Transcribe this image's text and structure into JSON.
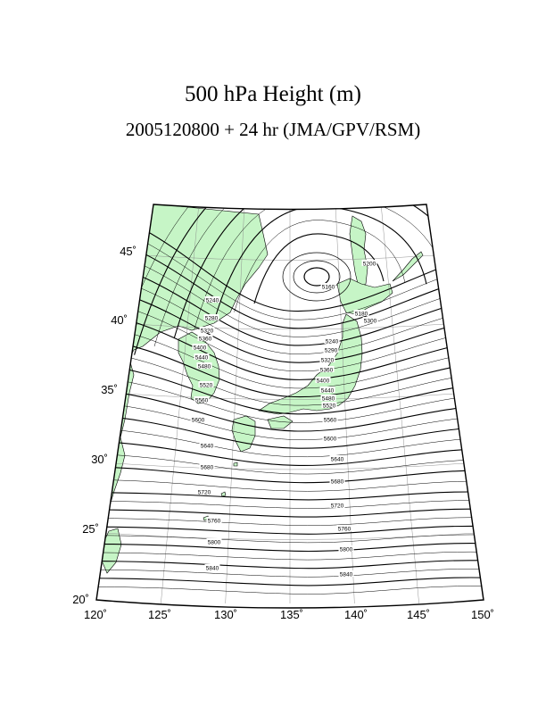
{
  "title": "500 hPa Height (m)",
  "subtitle": "2005120800 + 24 hr (JMA/GPV/RSM)",
  "map": {
    "lon_labels": [
      "120˚",
      "125˚",
      "130˚",
      "135˚",
      "140˚",
      "145˚",
      "150˚"
    ],
    "lat_labels": [
      "20˚",
      "25˚",
      "30˚",
      "35˚",
      "40˚",
      "45˚"
    ],
    "land_color": "#c6f5c6",
    "contour_labels": [
      "5160",
      "5180",
      "5200",
      "5240",
      "5280",
      "5290",
      "5300",
      "5320",
      "5360",
      "5400",
      "5440",
      "5480",
      "5520",
      "5560",
      "5600",
      "5640",
      "5680",
      "5720",
      "5760",
      "5800",
      "5840"
    ]
  },
  "chart_data": {
    "type": "contour",
    "title": "500 hPa Height (m)",
    "subtitle": "2005120800 + 24 hr (JMA/GPV/RSM)",
    "variable": "500 hPa geopotential height",
    "unit": "m",
    "x_range": [
      120,
      150
    ],
    "y_range": [
      20,
      48
    ],
    "labeled_levels": [
      5160,
      5240,
      5280,
      5320,
      5360,
      5400,
      5440,
      5480,
      5520,
      5560,
      5600,
      5640,
      5680,
      5720,
      5760,
      5800,
      5840
    ],
    "low_center": {
      "lon": 137,
      "lat": 45.5
    }
  }
}
